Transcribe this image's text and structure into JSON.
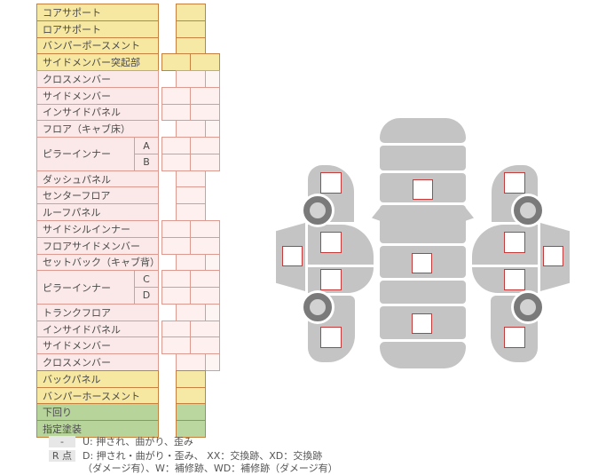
{
  "table": {
    "rows": [
      {
        "label": "コアサポート",
        "sub": "",
        "span": 1,
        "color": "yellow",
        "cells": "center"
      },
      {
        "label": "ロアサポート",
        "sub": "",
        "span": 1,
        "color": "yellow",
        "cells": "center"
      },
      {
        "label": "バンパーポースメント",
        "sub": "",
        "span": 1,
        "color": "yellow",
        "cells": "center"
      },
      {
        "label": "サイドメンバー突起部",
        "sub": "",
        "span": 1,
        "color": "yellow",
        "cells": "pair"
      },
      {
        "label": "クロスメンバー",
        "sub": "",
        "span": 1,
        "color": "pink",
        "cells": "offset"
      },
      {
        "label": "サイドメンバー",
        "sub": "",
        "span": 1,
        "color": "pink",
        "cells": "pair"
      },
      {
        "label": "インサイドパネル",
        "sub": "",
        "span": 1,
        "color": "pink",
        "cells": "pair"
      },
      {
        "label": "フロア（キャブ床）",
        "sub": "",
        "span": 1,
        "color": "pink",
        "cells": "offset"
      },
      {
        "label": "ピラーインナー",
        "sub": "A",
        "span": 2,
        "color": "pink",
        "cells": "pair"
      },
      {
        "label": "",
        "sub": "B",
        "span": 0,
        "color": "pink",
        "cells": "pair"
      },
      {
        "label": "ダッシュパネル",
        "sub": "",
        "span": 1,
        "color": "pink",
        "cells": "center"
      },
      {
        "label": "センターフロア",
        "sub": "",
        "span": 1,
        "color": "pink",
        "cells": "center"
      },
      {
        "label": "ルーフパネル",
        "sub": "",
        "span": 1,
        "color": "pink",
        "cells": "center"
      },
      {
        "label": "サイドシルインナー",
        "sub": "",
        "span": 1,
        "color": "pink",
        "cells": "pair"
      },
      {
        "label": "フロアサイドメンバー",
        "sub": "",
        "span": 1,
        "color": "pink",
        "cells": "pair"
      },
      {
        "label": "セットバック（キャブ背）",
        "sub": "",
        "span": 1,
        "color": "pink",
        "cells": "offset"
      },
      {
        "label": "ピラーインナー",
        "sub": "C",
        "span": 2,
        "color": "pink",
        "cells": "pair"
      },
      {
        "label": "",
        "sub": "D",
        "span": 0,
        "color": "pink",
        "cells": "pair"
      },
      {
        "label": "トランクフロア",
        "sub": "",
        "span": 1,
        "color": "pink",
        "cells": "offset"
      },
      {
        "label": "インサイドパネル",
        "sub": "",
        "span": 1,
        "color": "pink",
        "cells": "pair"
      },
      {
        "label": "サイドメンバー",
        "sub": "",
        "span": 1,
        "color": "pink",
        "cells": "pair"
      },
      {
        "label": "クロスメンバー",
        "sub": "",
        "span": 1,
        "color": "pink",
        "cells": "offset"
      },
      {
        "label": "バックパネル",
        "sub": "",
        "span": 1,
        "color": "yellow",
        "cells": "center"
      },
      {
        "label": "バンパーホースメント",
        "sub": "",
        "span": 1,
        "color": "yellow",
        "cells": "center"
      },
      {
        "label": "下回り",
        "sub": "",
        "span": 1,
        "color": "green",
        "cells": "center"
      },
      {
        "label": "指定塗装",
        "sub": "",
        "span": 1,
        "color": "green",
        "cells": "center"
      }
    ]
  },
  "legend": {
    "u": {
      "badge": "-",
      "text": "U: 押され、曲がり、歪み"
    },
    "r": {
      "badge": "R 点",
      "line1": "D: 押され・曲がり・歪み、 XX：交換跡、XD：交換跡",
      "line2": "（ダメージ有）、W：補修跡、WD：補修跡（ダメージ有）"
    }
  },
  "colors": {
    "accent_red": "#c43b3b",
    "car_gray": "#c4c4c4",
    "wheel_gray": "#7a7a7a",
    "row_yellow": "#f6e7a1",
    "row_pink": "#fbe9e9",
    "row_green": "#b7d49b",
    "badge_gray": "#e7e7e7"
  }
}
